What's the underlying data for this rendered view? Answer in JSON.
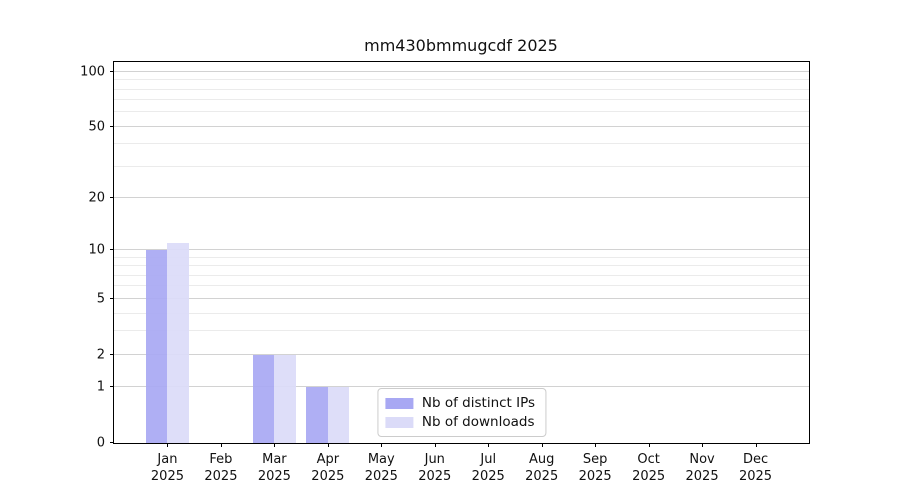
{
  "title": "mm430bmmugcdf 2025",
  "chart_data": {
    "type": "bar",
    "title": "mm430bmmugcdf 2025",
    "categories": [
      "Jan",
      "Feb",
      "Mar",
      "Apr",
      "May",
      "Jun",
      "Jul",
      "Aug",
      "Sep",
      "Oct",
      "Nov",
      "Dec"
    ],
    "category_year": "2025",
    "series": [
      {
        "name": "Nb of distinct IPs",
        "color": "#a8a8f3",
        "values": [
          10,
          0,
          2,
          1,
          0,
          0,
          0,
          0,
          0,
          0,
          0,
          0
        ]
      },
      {
        "name": "Nb of downloads",
        "color": "#dbdbf8",
        "values": [
          11,
          0,
          2,
          1,
          0,
          0,
          0,
          0,
          0,
          0,
          0,
          0
        ]
      }
    ],
    "xlabel": "",
    "ylabel": "",
    "y_scale": "log1p",
    "ylim": [
      0,
      113
    ],
    "y_major_ticks": [
      0,
      1,
      2,
      5,
      10,
      20,
      50,
      100
    ],
    "y_minor_ticks": [
      3,
      4,
      6,
      7,
      8,
      9,
      30,
      40,
      60,
      70,
      80,
      90
    ],
    "grid": "horizontal-on",
    "legend_position": "lower center"
  },
  "legend": {
    "items": [
      {
        "label": "Nb of distinct IPs"
      },
      {
        "label": "Nb of downloads"
      }
    ]
  },
  "colors": {
    "bar_distinct_ips": "#a8a8f3",
    "bar_downloads": "#dbdbf8",
    "grid_major": "#d2d2d2",
    "grid_minor": "#ebebeb",
    "axis": "#000000",
    "background": "#ffffff"
  }
}
